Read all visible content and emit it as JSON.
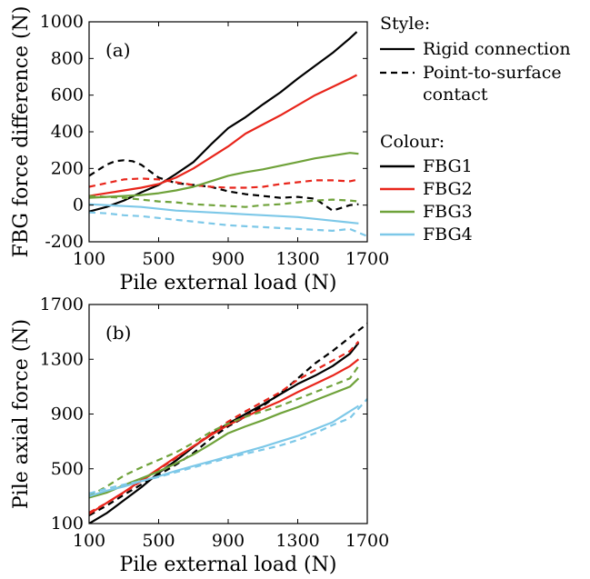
{
  "legend": {
    "style_title": "Style:",
    "colour_title": "Colour:",
    "style_items": [
      {
        "label": "Rigid connection",
        "dash": "solid"
      },
      {
        "label": "Point-to-surface",
        "label2": "contact",
        "dash": "dashed"
      }
    ],
    "colour_items": [
      {
        "label": "FBG1",
        "color": "#000000"
      },
      {
        "label": "FBG2",
        "color": "#e8251b"
      },
      {
        "label": "FBG3",
        "color": "#6fa23a"
      },
      {
        "label": "FBG4",
        "color": "#7dc8e8"
      }
    ]
  },
  "chart_data": [
    {
      "type": "line",
      "panel_label": "(a)",
      "xlabel": "Pile external load (N)",
      "ylabel": "FBG force difference (N)",
      "xlim": [
        100,
        1700
      ],
      "ylim": [
        -200,
        1000
      ],
      "xticks": [
        100,
        500,
        900,
        1300,
        1700
      ],
      "yticks": [
        -200,
        0,
        200,
        400,
        600,
        800,
        1000
      ],
      "grid": false,
      "series": [
        {
          "name": "FBG1",
          "style": "Rigid connection",
          "color": "#000000",
          "dash": "solid",
          "x": [
            100,
            200,
            300,
            400,
            500,
            600,
            700,
            800,
            900,
            1000,
            1100,
            1200,
            1300,
            1400,
            1500,
            1600,
            1640
          ],
          "y": [
            -35,
            -10,
            25,
            70,
            110,
            170,
            235,
            330,
            420,
            480,
            550,
            615,
            690,
            760,
            830,
            910,
            945
          ]
        },
        {
          "name": "FBG1",
          "style": "Point-to-surface contact",
          "color": "#000000",
          "dash": "dashed",
          "x": [
            100,
            150,
            200,
            250,
            300,
            350,
            400,
            450,
            500,
            600,
            700,
            800,
            900,
            1000,
            1100,
            1200,
            1300,
            1400,
            1500,
            1600,
            1650
          ],
          "y": [
            160,
            190,
            220,
            240,
            245,
            240,
            220,
            185,
            150,
            120,
            110,
            100,
            75,
            60,
            50,
            40,
            45,
            35,
            -30,
            0,
            5
          ]
        },
        {
          "name": "FBG2",
          "style": "Rigid connection",
          "color": "#e8251b",
          "dash": "solid",
          "x": [
            100,
            200,
            300,
            400,
            500,
            600,
            700,
            800,
            900,
            1000,
            1100,
            1200,
            1300,
            1400,
            1500,
            1600,
            1640
          ],
          "y": [
            50,
            65,
            80,
            95,
            115,
            150,
            200,
            260,
            320,
            390,
            440,
            490,
            545,
            600,
            645,
            690,
            710
          ]
        },
        {
          "name": "FBG2",
          "style": "Point-to-surface contact",
          "color": "#e8251b",
          "dash": "dashed",
          "x": [
            100,
            200,
            300,
            400,
            500,
            600,
            700,
            800,
            900,
            1000,
            1100,
            1200,
            1300,
            1400,
            1500,
            1600,
            1650
          ],
          "y": [
            100,
            120,
            140,
            145,
            140,
            125,
            110,
            100,
            95,
            95,
            100,
            115,
            125,
            135,
            135,
            130,
            140
          ]
        },
        {
          "name": "FBG3",
          "style": "Rigid connection",
          "color": "#6fa23a",
          "dash": "solid",
          "x": [
            100,
            200,
            300,
            400,
            500,
            600,
            700,
            800,
            900,
            1000,
            1100,
            1200,
            1300,
            1400,
            1500,
            1600,
            1650
          ],
          "y": [
            40,
            45,
            50,
            55,
            65,
            80,
            100,
            130,
            160,
            180,
            195,
            215,
            235,
            255,
            270,
            285,
            280
          ]
        },
        {
          "name": "FBG3",
          "style": "Point-to-surface contact",
          "color": "#6fa23a",
          "dash": "dashed",
          "x": [
            100,
            200,
            300,
            400,
            500,
            600,
            700,
            800,
            900,
            1000,
            1100,
            1200,
            1300,
            1400,
            1500,
            1600,
            1650
          ],
          "y": [
            50,
            45,
            40,
            30,
            20,
            15,
            5,
            0,
            -5,
            -10,
            0,
            5,
            15,
            25,
            30,
            25,
            20
          ]
        },
        {
          "name": "FBG4",
          "style": "Rigid connection",
          "color": "#7dc8e8",
          "dash": "solid",
          "x": [
            100,
            200,
            300,
            400,
            500,
            600,
            700,
            800,
            900,
            1000,
            1100,
            1200,
            1300,
            1400,
            1500,
            1600,
            1650
          ],
          "y": [
            5,
            0,
            -5,
            -10,
            -20,
            -30,
            -35,
            -40,
            -45,
            -50,
            -55,
            -60,
            -65,
            -75,
            -85,
            -95,
            -100
          ]
        },
        {
          "name": "FBG4",
          "style": "Point-to-surface contact",
          "color": "#7dc8e8",
          "dash": "dashed",
          "x": [
            100,
            200,
            300,
            400,
            500,
            600,
            700,
            800,
            900,
            1000,
            1100,
            1200,
            1300,
            1400,
            1500,
            1600,
            1700
          ],
          "y": [
            -40,
            -45,
            -55,
            -60,
            -70,
            -80,
            -90,
            -100,
            -110,
            -115,
            -120,
            -125,
            -130,
            -135,
            -140,
            -130,
            -170
          ]
        }
      ]
    },
    {
      "type": "line",
      "panel_label": "(b)",
      "xlabel": "Pile external load (N)",
      "ylabel": "Pile axial force (N)",
      "xlim": [
        100,
        1700
      ],
      "ylim": [
        100,
        1700
      ],
      "xticks": [
        100,
        500,
        900,
        1300,
        1700
      ],
      "yticks": [
        100,
        500,
        900,
        1300,
        1700
      ],
      "grid": false,
      "series": [
        {
          "name": "FBG1",
          "style": "Rigid connection",
          "color": "#000000",
          "dash": "solid",
          "x": [
            100,
            200,
            300,
            400,
            500,
            600,
            700,
            800,
            900,
            1000,
            1100,
            1200,
            1300,
            1400,
            1500,
            1600,
            1650
          ],
          "y": [
            100,
            175,
            270,
            365,
            470,
            560,
            660,
            750,
            830,
            900,
            970,
            1045,
            1120,
            1180,
            1250,
            1340,
            1420
          ]
        },
        {
          "name": "FBG1",
          "style": "Point-to-surface contact",
          "color": "#000000",
          "dash": "dashed",
          "x": [
            100,
            200,
            300,
            400,
            500,
            600,
            700,
            800,
            900,
            1000,
            1100,
            1200,
            1300,
            1400,
            1500,
            1600,
            1700
          ],
          "y": [
            160,
            230,
            310,
            385,
            455,
            530,
            615,
            720,
            810,
            880,
            960,
            1050,
            1160,
            1270,
            1360,
            1460,
            1560
          ]
        },
        {
          "name": "FBG2",
          "style": "Rigid connection",
          "color": "#e8251b",
          "dash": "solid",
          "x": [
            100,
            200,
            300,
            400,
            500,
            600,
            700,
            800,
            900,
            1000,
            1100,
            1200,
            1300,
            1400,
            1500,
            1600,
            1650
          ],
          "y": [
            170,
            250,
            330,
            415,
            500,
            585,
            665,
            745,
            820,
            880,
            940,
            995,
            1060,
            1120,
            1180,
            1250,
            1300
          ]
        },
        {
          "name": "FBG2",
          "style": "Point-to-surface contact",
          "color": "#e8251b",
          "dash": "dashed",
          "x": [
            100,
            200,
            300,
            400,
            500,
            600,
            700,
            800,
            900,
            1000,
            1100,
            1200,
            1300,
            1400,
            1500,
            1600,
            1650
          ],
          "y": [
            180,
            250,
            325,
            410,
            495,
            580,
            665,
            755,
            845,
            920,
            990,
            1060,
            1150,
            1220,
            1290,
            1360,
            1430
          ]
        },
        {
          "name": "FBG3",
          "style": "Rigid connection",
          "color": "#6fa23a",
          "dash": "solid",
          "x": [
            100,
            200,
            300,
            400,
            500,
            600,
            700,
            800,
            900,
            1000,
            1100,
            1200,
            1300,
            1400,
            1500,
            1600,
            1650
          ],
          "y": [
            290,
            325,
            380,
            430,
            480,
            540,
            605,
            680,
            760,
            810,
            855,
            905,
            950,
            1000,
            1050,
            1100,
            1160
          ]
        },
        {
          "name": "FBG3",
          "style": "Point-to-surface contact",
          "color": "#6fa23a",
          "dash": "dashed",
          "x": [
            100,
            200,
            300,
            400,
            500,
            600,
            700,
            800,
            900,
            1000,
            1100,
            1200,
            1300,
            1400,
            1500,
            1600,
            1650
          ],
          "y": [
            300,
            370,
            450,
            510,
            565,
            620,
            690,
            770,
            830,
            880,
            920,
            960,
            1010,
            1060,
            1110,
            1160,
            1250
          ]
        },
        {
          "name": "FBG4",
          "style": "Rigid connection",
          "color": "#7dc8e8",
          "dash": "solid",
          "x": [
            100,
            200,
            300,
            400,
            500,
            600,
            700,
            800,
            900,
            1000,
            1100,
            1200,
            1300,
            1400,
            1500,
            1600,
            1650
          ],
          "y": [
            300,
            340,
            370,
            410,
            445,
            485,
            520,
            555,
            590,
            625,
            660,
            700,
            740,
            790,
            840,
            920,
            960
          ]
        },
        {
          "name": "FBG4",
          "style": "Point-to-surface contact",
          "color": "#7dc8e8",
          "dash": "dashed",
          "x": [
            100,
            200,
            300,
            400,
            500,
            600,
            700,
            800,
            900,
            1000,
            1100,
            1200,
            1300,
            1400,
            1500,
            1600,
            1700
          ],
          "y": [
            320,
            355,
            385,
            410,
            440,
            475,
            510,
            545,
            580,
            610,
            640,
            670,
            710,
            760,
            820,
            870,
            1010
          ]
        }
      ]
    }
  ]
}
